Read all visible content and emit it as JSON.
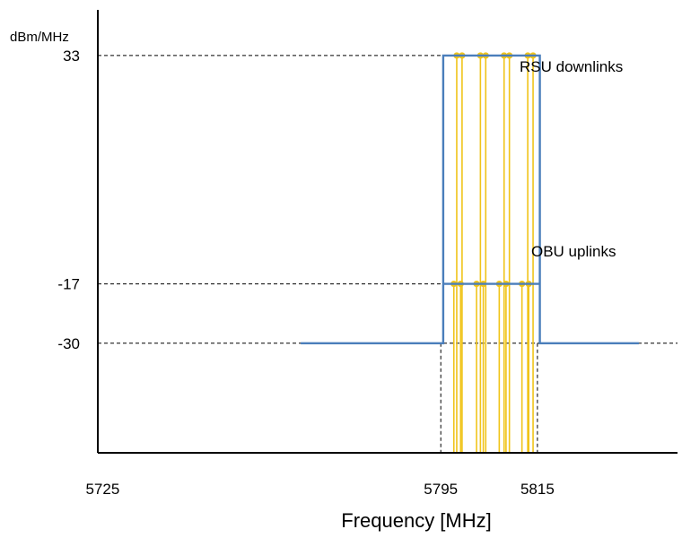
{
  "chart_data": {
    "type": "line",
    "title": "",
    "ylabel": "dBm/MHz",
    "xlabel": "Frequency [MHz]",
    "x_ticks": [
      5725,
      5795,
      5815
    ],
    "x_tick_labels": [
      "5725",
      "5795",
      "5815"
    ],
    "y_ticks": [
      33,
      -17,
      -30
    ],
    "y_tick_labels": [
      "33",
      "-17",
      "-30"
    ],
    "xlim": [
      5724,
      5844
    ],
    "ylim": [
      -54,
      43
    ],
    "grid": false,
    "series": [
      {
        "color": "#4a7ebb",
        "x": [
          5766,
          5795.5,
          5795.5,
          5815.5,
          5815.5,
          5836
        ],
        "y": [
          -30,
          -30,
          33,
          33,
          -30,
          -30
        ]
      }
    ],
    "obu_uplink_line": {
      "color": "#4a7ebb",
      "x": [
        5795.5,
        5815.5
      ],
      "y": -17
    },
    "reference_lines": {
      "color": "#000000",
      "horizontal": [
        {
          "y": 33,
          "x_start": 5724,
          "x_end": 5795.5
        },
        {
          "y": -17,
          "x_start": 5724,
          "x_end": 5795.5
        },
        {
          "y": -30,
          "x_start": 5724,
          "x_end": 5844
        }
      ],
      "vertical": [
        {
          "x": 5795,
          "y_start": -30,
          "y_end": -54
        },
        {
          "x": 5815,
          "y_start": -30,
          "y_end": -54
        }
      ]
    },
    "channels": {
      "color": "#f0c419",
      "downlink": {
        "level": 33,
        "x": [
          5798.3,
          5799.4,
          5803.2,
          5804.3,
          5808.1,
          5809.2,
          5813.0,
          5814.1
        ]
      },
      "uplink": {
        "level": -17,
        "x": [
          5797.7,
          5799.1,
          5802.4,
          5803.8,
          5807.1,
          5808.5,
          5811.8,
          5813.2
        ]
      }
    },
    "annotations": [
      {
        "text": "RSU downlinks",
        "x": 5819,
        "y": 33
      },
      {
        "text": "OBU uplinks",
        "x": 5819,
        "y": -17
      }
    ]
  }
}
